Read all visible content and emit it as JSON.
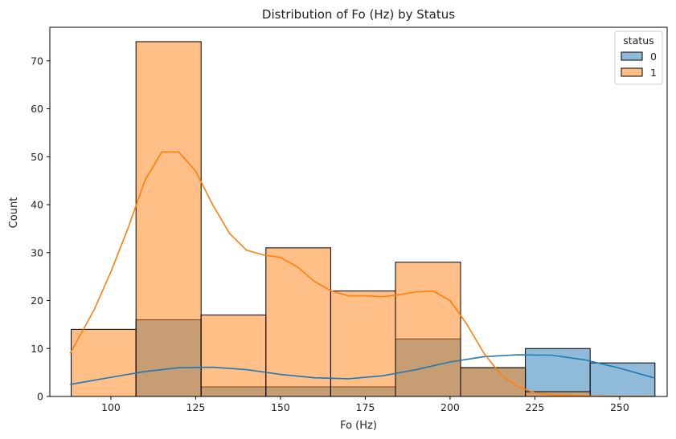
{
  "chart_data": {
    "type": "histogram",
    "title": "Distribution of Fo (Hz) by Status",
    "xlabel": "Fo (Hz)",
    "ylabel": "Count",
    "xlim": [
      82,
      264
    ],
    "ylim": [
      0,
      77
    ],
    "xticks": [
      100,
      125,
      150,
      175,
      200,
      225,
      250
    ],
    "yticks": [
      0,
      10,
      20,
      30,
      40,
      50,
      60,
      70
    ],
    "bin_edges": [
      88.3,
      107.4,
      126.6,
      145.7,
      164.8,
      183.9,
      203.1,
      222.2,
      241.3,
      260.4
    ],
    "legend": {
      "title": "status",
      "position": "top-right"
    },
    "series": [
      {
        "name": "0",
        "color": "#1f77b4",
        "counts": [
          0,
          16,
          2,
          2,
          2,
          12,
          6,
          10,
          7
        ],
        "kde": {
          "x": [
            88,
            100,
            110,
            120,
            130,
            140,
            150,
            160,
            170,
            180,
            190,
            200,
            210,
            220,
            230,
            240,
            250,
            260
          ],
          "y": [
            2.5,
            4.0,
            5.2,
            6.0,
            6.1,
            5.6,
            4.6,
            3.9,
            3.7,
            4.3,
            5.6,
            7.2,
            8.3,
            8.7,
            8.6,
            7.6,
            5.9,
            3.9
          ]
        }
      },
      {
        "name": "1",
        "color": "#ff7f0e",
        "counts": [
          14,
          74,
          17,
          31,
          22,
          28,
          6,
          1,
          0
        ],
        "kde": {
          "x": [
            88,
            95,
            100,
            105,
            110,
            115,
            120,
            125,
            130,
            135,
            140,
            145,
            150,
            155,
            160,
            165,
            170,
            175,
            180,
            185,
            190,
            195,
            200,
            205,
            210,
            215,
            220,
            225,
            230,
            240,
            250,
            260
          ],
          "y": [
            9,
            18,
            26,
            35,
            45,
            51,
            51,
            47,
            40,
            34,
            30.5,
            29.5,
            29,
            27,
            24,
            22,
            21,
            21,
            20.8,
            21.2,
            21.8,
            22,
            20,
            15,
            9,
            4.5,
            2,
            0.8,
            0.3,
            0.1,
            0,
            0
          ]
        }
      }
    ]
  }
}
